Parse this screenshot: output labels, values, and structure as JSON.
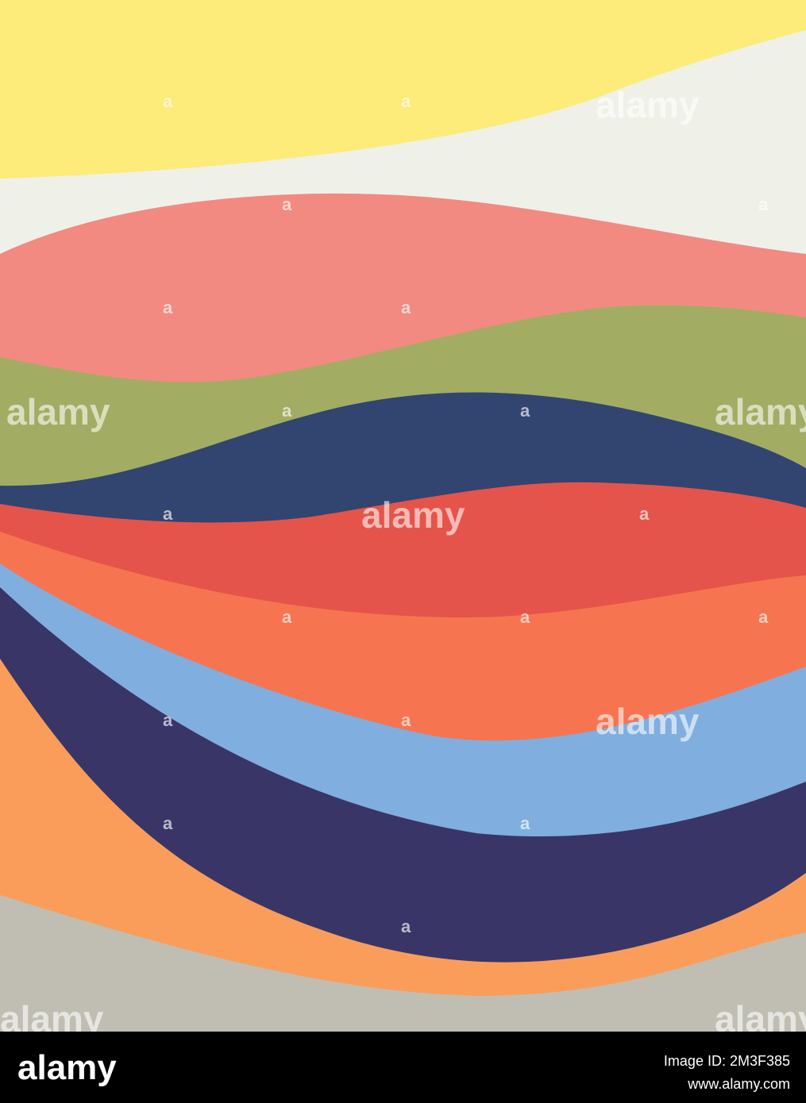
{
  "watermarks": [
    "alamy",
    "alamy",
    "alamy",
    "alamy",
    "alamy",
    "alamy",
    "alamy"
  ],
  "small_marks": [
    "a",
    "a",
    "a",
    "a",
    "a",
    "a",
    "a",
    "a",
    "a",
    "a",
    "a",
    "a",
    "a",
    "a",
    "a",
    "a",
    "a",
    "a"
  ],
  "footer": {
    "logo": "alamy",
    "image_id": "Image ID: 2M3F385",
    "url": "www.alamy.com"
  }
}
